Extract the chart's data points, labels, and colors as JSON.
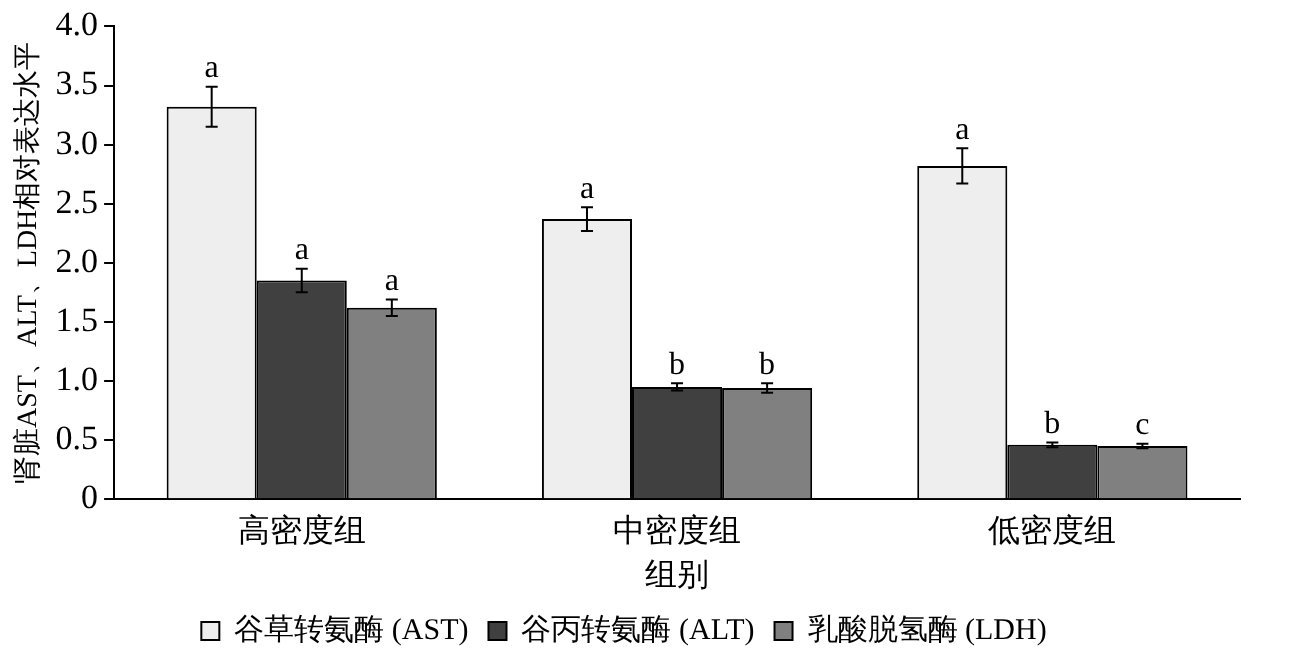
{
  "chart_data": {
    "type": "bar",
    "xlabel": "组别",
    "ylabel": "肾脏AST、ALT、LDH相对表达水平",
    "categories": [
      "高密度组",
      "中密度组",
      "低密度组"
    ],
    "series": [
      {
        "name": "谷草转氨酶 (AST)",
        "color": "#eeeeee",
        "values": [
          3.32,
          2.37,
          2.82
        ],
        "errors": [
          0.17,
          0.1,
          0.15
        ],
        "value_labels": [
          "a",
          "a",
          "a"
        ]
      },
      {
        "name": "谷丙转氨酶 (ALT)",
        "color": "#404040",
        "values": [
          1.85,
          0.95,
          0.46
        ],
        "errors": [
          0.1,
          0.03,
          0.02
        ],
        "value_labels": [
          "a",
          "b",
          "b"
        ]
      },
      {
        "name": "乳酸脱氢酶 (LDH)",
        "color": "#808080",
        "values": [
          1.62,
          0.94,
          0.45
        ],
        "errors": [
          0.07,
          0.04,
          0.02
        ],
        "value_labels": [
          "a",
          "b",
          "c"
        ]
      }
    ],
    "ylim": [
      0,
      4
    ],
    "yticks": [
      0,
      {
        "value": 0.5,
        "label": "0.5"
      },
      {
        "value": 1,
        "label": "1.0"
      },
      {
        "value": 1.5,
        "label": "1.5"
      },
      {
        "value": 2,
        "label": "2.0"
      },
      {
        "value": 2.5,
        "label": "2.5"
      },
      {
        "value": 3,
        "label": "3.0"
      },
      {
        "value": 3.5,
        "label": "3.5"
      },
      {
        "value": 4,
        "label": "4.0"
      }
    ],
    "grid": false,
    "legend": "bottom"
  }
}
